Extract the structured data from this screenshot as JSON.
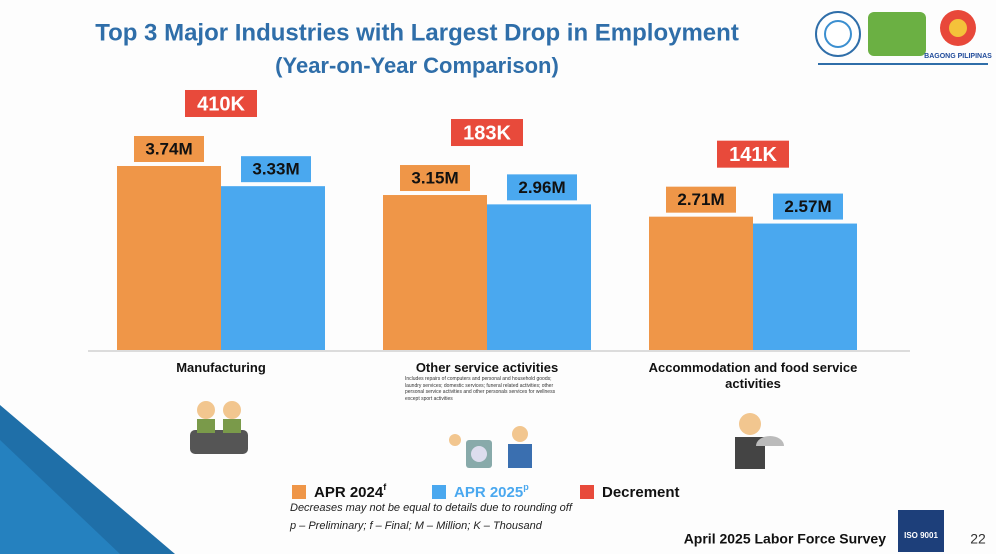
{
  "header": {
    "title": "Top 3 Major Industries with Largest Drop in Employment",
    "subtitle": "(Year-on-Year Comparison)"
  },
  "chart_data": {
    "type": "bar",
    "categories": [
      "Manufacturing",
      "Other service activities",
      "Accommodation and food service activities"
    ],
    "other_service_note": "Includes repairs of computers and personal and household goods; laundry services; domestic services; funeral related activities; other personal service activities and other personals services for wellness except sport activities",
    "series": [
      {
        "name": "APR 2024",
        "superscript": "f",
        "color": "#ef9648",
        "values": [
          3.74,
          3.15,
          2.71
        ],
        "value_labels": [
          "3.74M",
          "3.15M",
          "2.71M"
        ]
      },
      {
        "name": "APR 2025",
        "superscript": "p",
        "color": "#4aa8ef",
        "values": [
          3.33,
          2.96,
          2.57
        ],
        "value_labels": [
          "3.33M",
          "2.96M",
          "2.57M"
        ]
      }
    ],
    "decrement": {
      "name": "Decrement",
      "color": "#e84a3b",
      "values": [
        410,
        183,
        141
      ],
      "value_labels": [
        "410K",
        "183K",
        "141K"
      ]
    }
  },
  "notes": [
    "Decreases may not be equal to details due to rounding off",
    "p – Preliminary; f – Final; M – Million; K – Thousand"
  ],
  "footer": {
    "survey": "April 2025 Labor Force Survey",
    "page": "22",
    "logo_text": "BAGONG PILIPINAS",
    "iso": "ISO 9001"
  }
}
